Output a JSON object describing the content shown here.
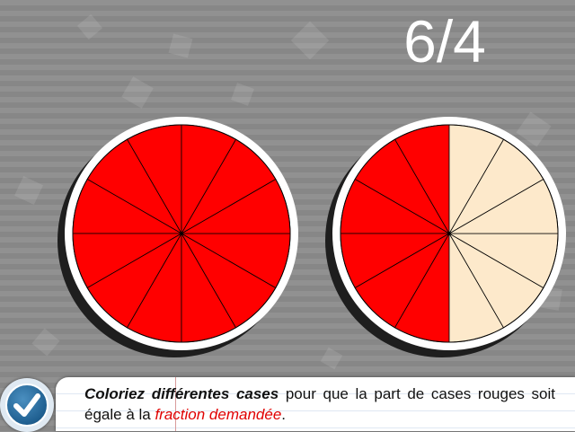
{
  "fraction": {
    "label": "6/4"
  },
  "wheels": [
    {
      "id": "wheel-left",
      "total_slices": 12,
      "colored_slices": 12
    },
    {
      "id": "wheel-right",
      "total_slices": 12,
      "colored_slices": 6
    }
  ],
  "colors": {
    "colored": "#ff0000",
    "uncolored": "#fde9cb",
    "rim": "#ffffff",
    "shadow": "#1e1e1e",
    "divider": "#000000"
  },
  "instruction": {
    "part1": "Coloriez différentes cases",
    "part2": " pour que la part de cases rouges soit égale à la ",
    "part3": "fraction demandée",
    "part4": "."
  },
  "validate_button": {
    "icon": "checkmark-icon"
  }
}
